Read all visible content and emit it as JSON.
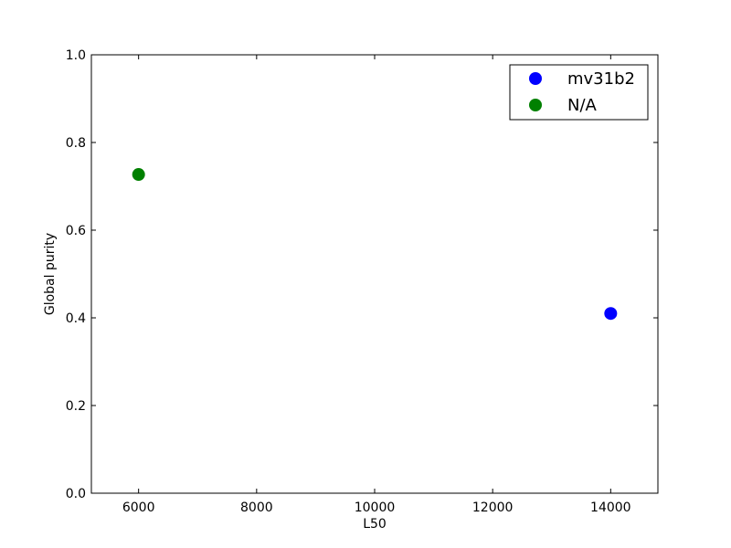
{
  "chart_data": {
    "type": "scatter",
    "title": "",
    "xlabel": "L50",
    "ylabel": "Global purity",
    "xlim": [
      5200,
      14800
    ],
    "ylim": [
      0.0,
      1.0
    ],
    "xticks": [
      6000,
      8000,
      10000,
      12000,
      14000
    ],
    "yticks": [
      0.0,
      0.2,
      0.4,
      0.6,
      0.8,
      1.0
    ],
    "xtick_labels": [
      "6000",
      "8000",
      "10000",
      "12000",
      "14000"
    ],
    "ytick_labels": [
      "0.0",
      "0.2",
      "0.4",
      "0.6",
      "0.8",
      "1.0"
    ],
    "grid": false,
    "legend_position": "top-right",
    "series": [
      {
        "name": "mv31b2",
        "color": "#0000ff",
        "points": [
          {
            "x": 14000,
            "y": 0.41
          }
        ]
      },
      {
        "name": "N/A",
        "color": "#008000",
        "points": [
          {
            "x": 6000,
            "y": 0.727
          }
        ]
      }
    ]
  }
}
